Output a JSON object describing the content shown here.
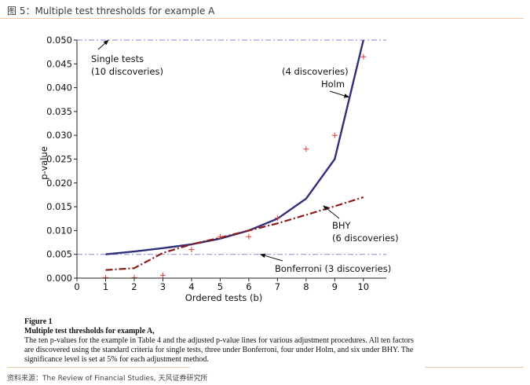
{
  "header": {
    "title": "图 5：Multiple test thresholds for example A"
  },
  "chart_data": {
    "type": "line",
    "xlabel": "Ordered tests (b)",
    "ylabel": "p-value",
    "xlim": [
      0,
      10.8
    ],
    "ylim": [
      0,
      0.05
    ],
    "x_ticks": [
      0,
      1,
      2,
      3,
      4,
      5,
      6,
      7,
      8,
      9,
      10
    ],
    "y_ticks": [
      "0.000",
      "0.005",
      "0.010",
      "0.015",
      "0.020",
      "0.025",
      "0.030",
      "0.035",
      "0.040",
      "0.045",
      "0.050"
    ],
    "reference_lines": [
      {
        "name": "Single tests",
        "y": 0.05,
        "color": "#8a86d8"
      },
      {
        "name": "Bonferroni",
        "y": 0.005,
        "color": "#8a86d8"
      }
    ],
    "series": [
      {
        "type": "line",
        "color": "#2f2f7a",
        "x": [
          1,
          2,
          3,
          4,
          5,
          6,
          7,
          8,
          9,
          10
        ],
        "y": [
          0.005,
          0.0056,
          0.0063,
          0.0071,
          0.0083,
          0.01,
          0.0125,
          0.0167,
          0.025,
          0.05
        ]
      },
      {
        "type": "dashdot",
        "color": "#8a1a1a",
        "x": [
          1,
          2,
          3,
          4,
          5,
          6,
          7,
          8,
          9,
          10
        ],
        "y": [
          0.0017,
          0.0021,
          0.0053,
          0.0071,
          0.0085,
          0.01,
          0.0115,
          0.0133,
          0.0151,
          0.017
        ]
      },
      {
        "type": "scatter",
        "marker": "+",
        "color": "#e03a3a",
        "x": [
          1,
          2,
          3,
          4,
          5,
          6,
          7,
          8,
          9,
          10
        ],
        "y": [
          0.0001,
          0.0001,
          0.0006,
          0.006,
          0.0087,
          0.0087,
          0.0126,
          0.0271,
          0.03,
          0.0465
        ]
      }
    ],
    "annotations": [
      {
        "lines": [
          "Single tests",
          "(10 discoveries)"
        ],
        "arrow_to": [
          1.1,
          0.05
        ]
      },
      {
        "lines": [
          "(4 discoveries)",
          "Holm"
        ],
        "arrow_to": [
          9.5,
          0.038
        ]
      },
      {
        "lines": [
          "BHY",
          "(6 discoveries)"
        ],
        "arrow_to": [
          8.6,
          0.0152
        ]
      },
      {
        "lines": [
          "Bonferroni (3 discoveries)"
        ],
        "arrow_to": [
          6.4,
          0.005
        ]
      }
    ]
  },
  "caption": {
    "label": "Figure 1",
    "title": "Multiple test thresholds for example A,",
    "body": "The ten p-values for the example in Table 4 and the adjusted p-value lines for various adjustment procedures. All ten factors are discovered using the standard criteria for single tests, three under Bonferroni, four under Holm, and six under BHY. The significance level is set at 5% for each adjustment method."
  },
  "footer": {
    "source": "资料来源：The Review of Financial Studies, 天风证券研究所"
  }
}
